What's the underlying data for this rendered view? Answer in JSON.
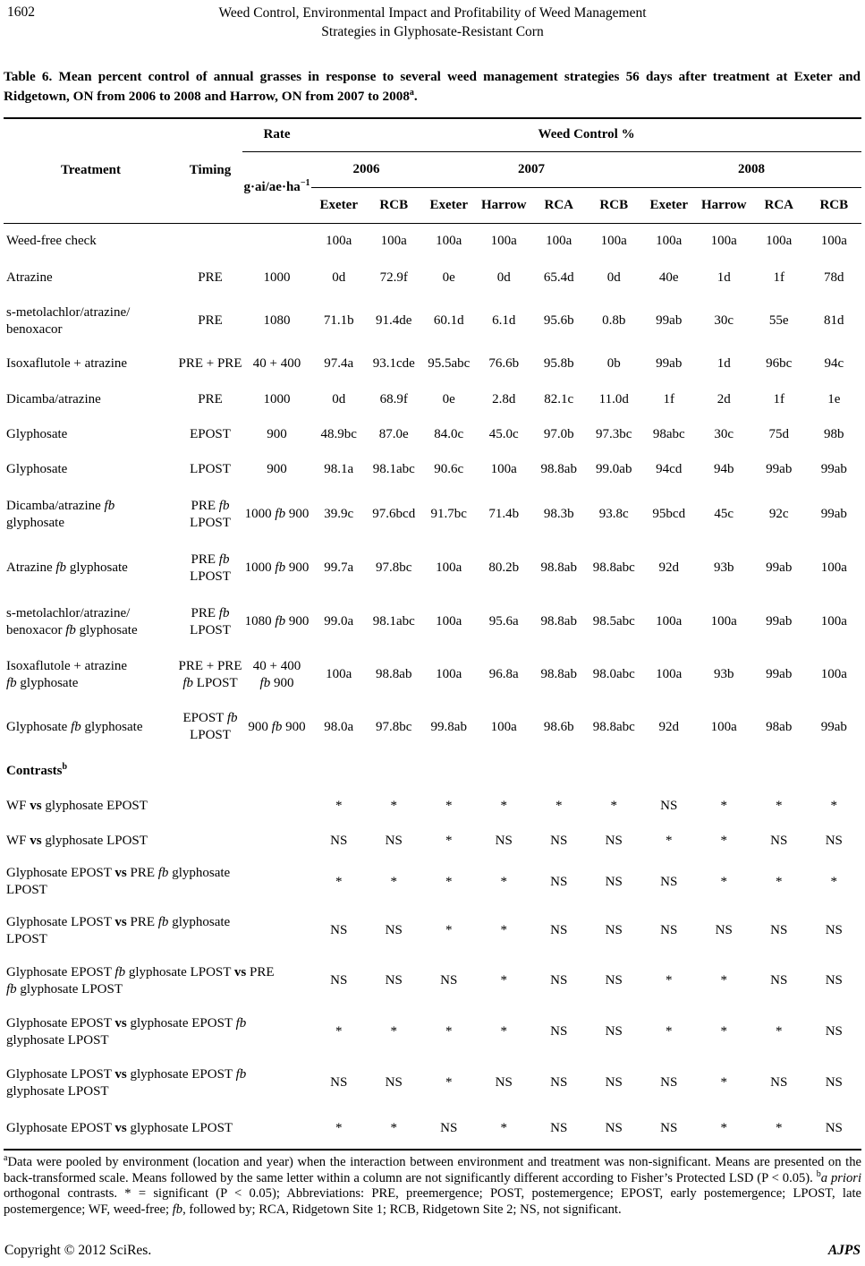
{
  "page": {
    "page_number": "1602",
    "running_title": "Weed Control, Environmental Impact and Profitability of Weed Management\nStrategies in Glyphosate-Resistant Corn",
    "footer_left": "Copyright © 2012 SciRes.",
    "footer_right": "AJPS"
  },
  "caption": "Table 6. Mean percent control of annual grasses in response to several weed management strategies 56 days after treatment at Exeter and Ridgetown, ON from 2006 to 2008 and Harrow, ON from 2007 to 2008{sup}a{/sup}.",
  "table": {
    "header": {
      "treatment": "Treatment",
      "timing": "Timing",
      "rate": "Rate",
      "rate_unit": "g·ai/ae·ha{sup}−1{/sup}",
      "weed_control": "Weed Control %",
      "years": [
        {
          "label": "2006",
          "span": 2
        },
        {
          "label": "2007",
          "span": 4
        },
        {
          "label": "2008",
          "span": 4
        }
      ],
      "sites": [
        "Exeter",
        "RCB",
        "Exeter",
        "Harrow",
        "RCA",
        "RCB",
        "Exeter",
        "Harrow",
        "RCA",
        "RCB"
      ]
    },
    "rows": [
      {
        "treatment": "Weed-free check",
        "timing": "",
        "rate": "",
        "values": [
          "100a",
          "100a",
          "100a",
          "100a",
          "100a",
          "100a",
          "100a",
          "100a",
          "100a",
          "100a"
        ]
      },
      {
        "treatment": "Atrazine",
        "timing": "PRE",
        "rate": "1000",
        "values": [
          "0d",
          "72.9f",
          "0e",
          "0d",
          "65.4d",
          "0d",
          "40e",
          "1d",
          "1f",
          "78d"
        ]
      },
      {
        "treatment": "s-metolachlor/atrazine/\nbenoxacor",
        "timing": "PRE",
        "rate": "1080",
        "values": [
          "71.1b",
          "91.4de",
          "60.1d",
          "6.1d",
          "95.6b",
          "0.8b",
          "99ab",
          "30c",
          "55e",
          "81d"
        ]
      },
      {
        "treatment": "Isoxaflutole + atrazine",
        "timing": "PRE + PRE",
        "rate": "40 + 400",
        "values": [
          "97.4a",
          "93.1cde",
          "95.5abc",
          "76.6b",
          "95.8b",
          "0b",
          "99ab",
          "1d",
          "96bc",
          "94c"
        ]
      },
      {
        "treatment": "Dicamba/atrazine",
        "timing": "PRE",
        "rate": "1000",
        "values": [
          "0d",
          "68.9f",
          "0e",
          "2.8d",
          "82.1c",
          "11.0d",
          "1f",
          "2d",
          "1f",
          "1e"
        ]
      },
      {
        "treatment": "Glyphosate",
        "timing": "EPOST",
        "rate": "900",
        "values": [
          "48.9bc",
          "87.0e",
          "84.0c",
          "45.0c",
          "97.0b",
          "97.3bc",
          "98abc",
          "30c",
          "75d",
          "98b"
        ]
      },
      {
        "treatment": "Glyphosate",
        "timing": "LPOST",
        "rate": "900",
        "values": [
          "98.1a",
          "98.1abc",
          "90.6c",
          "100a",
          "98.8ab",
          "99.0ab",
          "94cd",
          "94b",
          "99ab",
          "99ab"
        ]
      },
      {
        "treatment": "Dicamba/atrazine {i}fb{/i}\nglyphosate",
        "timing": "PRE {i}fb{/i}\nLPOST",
        "rate": "1000 {i}fb{/i} 900",
        "values": [
          "39.9c",
          "97.6bcd",
          "91.7bc",
          "71.4b",
          "98.3b",
          "93.8c",
          "95bcd",
          "45c",
          "92c",
          "99ab"
        ]
      },
      {
        "treatment": "Atrazine {i}fb{/i} glyphosate",
        "timing": "PRE {i}fb{/i}\nLPOST",
        "rate": "1000 {i}fb{/i} 900",
        "values": [
          "99.7a",
          "97.8bc",
          "100a",
          "80.2b",
          "98.8ab",
          "98.8abc",
          "92d",
          "93b",
          "99ab",
          "100a"
        ]
      },
      {
        "treatment": "s-metolachlor/atrazine/\nbenoxacor {i}fb{/i} glyphosate",
        "timing": "PRE {i}fb{/i}\nLPOST",
        "rate": "1080 {i}fb{/i} 900",
        "values": [
          "99.0a",
          "98.1abc",
          "100a",
          "95.6a",
          "98.8ab",
          "98.5abc",
          "100a",
          "100a",
          "99ab",
          "100a"
        ]
      },
      {
        "treatment": "Isoxaflutole + atrazine\n{i}fb{/i} glyphosate",
        "timing": "PRE + PRE\n{i}fb{/i} LPOST",
        "rate": "40 + 400\n{i}fb{/i} 900",
        "values": [
          "100a",
          "98.8ab",
          "100a",
          "96.8a",
          "98.8ab",
          "98.0abc",
          "100a",
          "93b",
          "99ab",
          "100a"
        ]
      },
      {
        "treatment": "Glyphosate {i}fb{/i} glyphosate",
        "timing": "EPOST {i}fb{/i}\nLPOST",
        "rate": "900 {i}fb{/i} 900",
        "values": [
          "98.0a",
          "97.8bc",
          "99.8ab",
          "100a",
          "98.6b",
          "98.8abc",
          "92d",
          "100a",
          "98ab",
          "99ab"
        ]
      }
    ],
    "contrasts_label": "Contrasts{sup}b{/sup}",
    "contrasts": [
      {
        "label": "WF {b}vs{/b} glyphosate EPOST",
        "values": [
          "*",
          "*",
          "*",
          "*",
          "*",
          "*",
          "NS",
          "*",
          "*",
          "*"
        ]
      },
      {
        "label": "WF {b}vs{/b} glyphosate LPOST",
        "values": [
          "NS",
          "NS",
          "*",
          "NS",
          "NS",
          "NS",
          "*",
          "*",
          "NS",
          "NS"
        ]
      },
      {
        "label": "Glyphosate EPOST {b}vs{/b} PRE {i}fb{/i} glyphosate\nLPOST",
        "values": [
          "*",
          "*",
          "*",
          "*",
          "NS",
          "NS",
          "NS",
          "*",
          "*",
          "*"
        ]
      },
      {
        "label": "Glyphosate LPOST {b}vs{/b} PRE {i}fb{/i} glyphosate\nLPOST",
        "values": [
          "NS",
          "NS",
          "*",
          "*",
          "NS",
          "NS",
          "NS",
          "NS",
          "NS",
          "NS"
        ]
      },
      {
        "label": "Glyphosate EPOST {i}fb{/i} glyphosate LPOST {b}vs{/b} PRE\n{i}fb{/i} glyphosate LPOST",
        "values": [
          "NS",
          "NS",
          "NS",
          "*",
          "NS",
          "NS",
          "*",
          "*",
          "NS",
          "NS"
        ]
      },
      {
        "label": "Glyphosate EPOST {b}vs{/b} glyphosate EPOST {i}fb{/i}\nglyphosate LPOST",
        "values": [
          "*",
          "*",
          "*",
          "*",
          "NS",
          "NS",
          "*",
          "*",
          "*",
          "NS"
        ]
      },
      {
        "label": "Glyphosate LPOST {b}vs{/b} glyphosate EPOST {i}fb{/i}\nglyphosate LPOST",
        "values": [
          "NS",
          "NS",
          "*",
          "NS",
          "NS",
          "NS",
          "NS",
          "*",
          "NS",
          "NS"
        ]
      },
      {
        "label": "Glyphosate EPOST {b}vs{/b} glyphosate LPOST",
        "values": [
          "*",
          "*",
          "NS",
          "*",
          "NS",
          "NS",
          "NS",
          "*",
          "*",
          "NS"
        ]
      }
    ],
    "footnote": "{sup}a{/sup}Data were pooled by environment (location and year) when the interaction between environment and treatment was non-significant. Means are presented on the back-transformed scale. Means followed by the same letter within a column are not significantly different according to Fisher’s Protected LSD (P < 0.05). {sup}b{/sup}{i}a priori{/i} orthogonal contrasts. * = significant (P < 0.05); Abbreviations: PRE, preemergence; POST, postemergence; EPOST, early postemergence; LPOST, late postemergence; WF, weed-free; {i}fb{/i}, followed by; RCA, Ridgetown Site 1; RCB, Ridgetown Site 2; NS, not significant."
  }
}
